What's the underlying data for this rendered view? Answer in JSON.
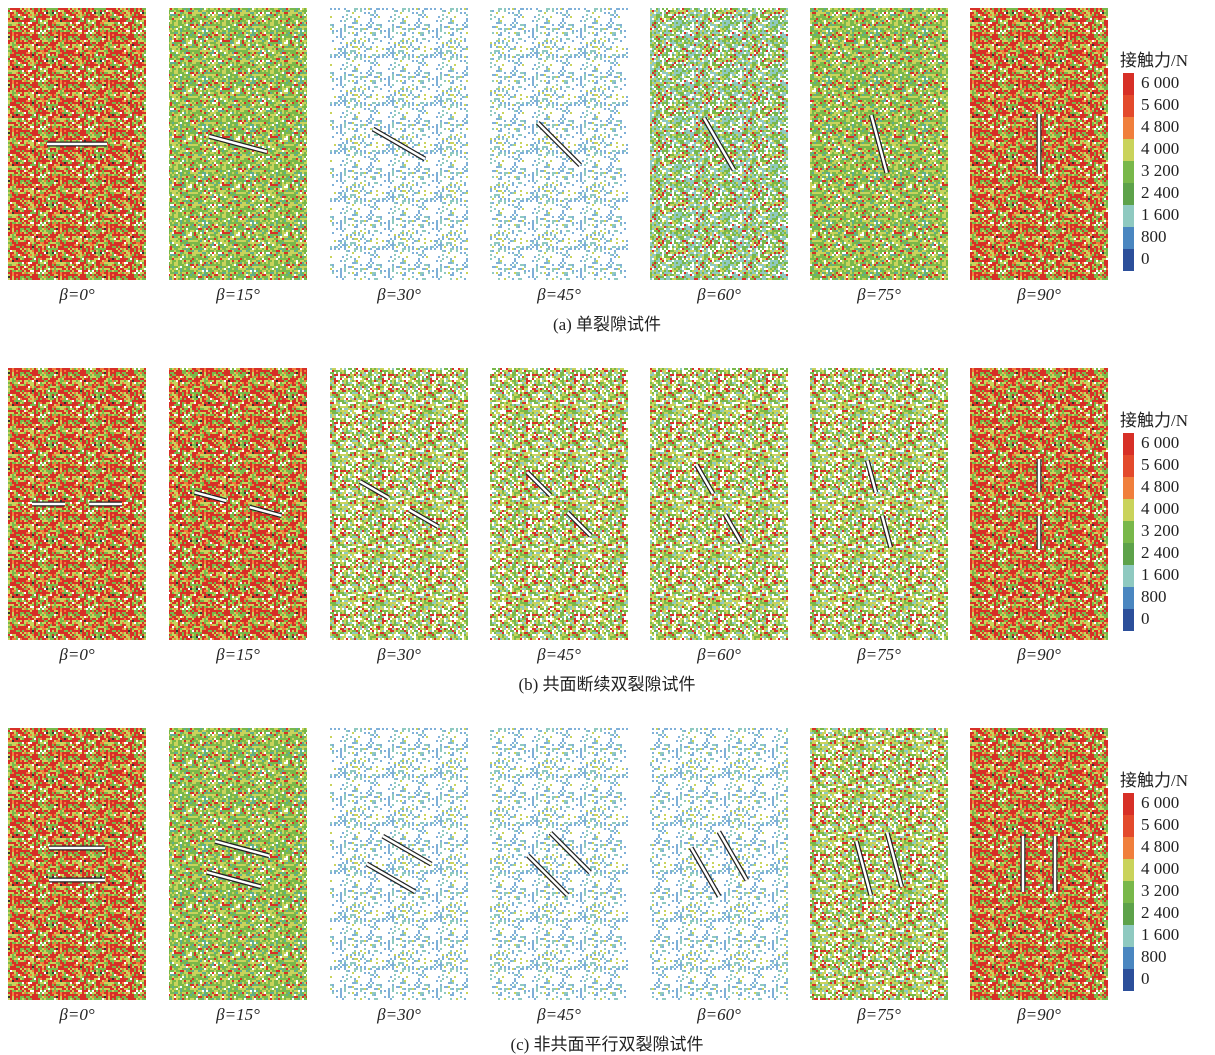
{
  "rows": [
    {
      "caption": "(a) 单裂隙试件",
      "panels": [
        "β=0°",
        "β=15°",
        "β=30°",
        "β=45°",
        "β=60°",
        "β=75°",
        "β=90°"
      ],
      "legend": {
        "title": "接触力/N",
        "labels": [
          "6 000",
          "5 600",
          "4 800",
          "4 000",
          "3 200",
          "2 400",
          "1 600",
          "800",
          "0"
        ]
      }
    },
    {
      "caption": "(b) 共面断续双裂隙试件",
      "panels": [
        "β=0°",
        "β=15°",
        "β=30°",
        "β=45°",
        "β=60°",
        "β=75°",
        "β=90°"
      ],
      "legend": {
        "title": "接触力/N",
        "labels": [
          "6 000",
          "5 600",
          "4 800",
          "4 000",
          "3 200",
          "2 400",
          "1 600",
          "800",
          "0"
        ]
      }
    },
    {
      "caption": "(c) 非共面平行双裂隙试件",
      "panels": [
        "β=0°",
        "β=15°",
        "β=30°",
        "β=45°",
        "β=60°",
        "β=75°",
        "β=90°"
      ],
      "legend": {
        "title": "接触力/N",
        "labels": [
          "6 000",
          "5 600",
          "4 800",
          "4 000",
          "3 200",
          "2 400",
          "1 600",
          "800",
          "0"
        ]
      }
    }
  ]
}
